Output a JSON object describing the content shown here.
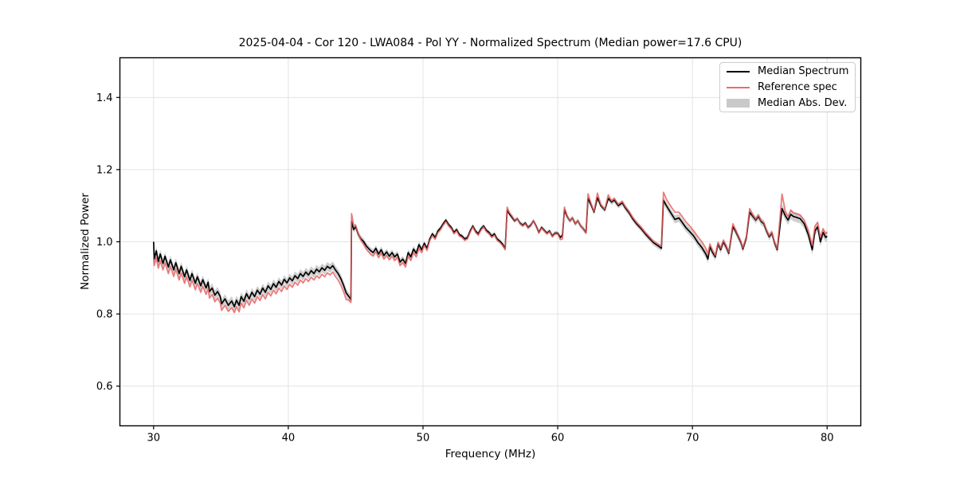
{
  "chart_data": {
    "type": "line",
    "title": "2025-04-04 - Cor 120 - LWA084 - Pol YY - Normalized Spectrum (Median power=17.6 CPU)",
    "xlabel": "Frequency (MHz)",
    "ylabel": "Normalized Power",
    "xlim": [
      27.5,
      82.5
    ],
    "ylim": [
      0.49,
      1.51
    ],
    "xticks": [
      30,
      40,
      50,
      60,
      70,
      80
    ],
    "xtick_labels": [
      "30",
      "40",
      "50",
      "60",
      "70",
      "80"
    ],
    "yticks": [
      0.6,
      0.8,
      1.0,
      1.2,
      1.4
    ],
    "ytick_labels": [
      "0.6",
      "0.8",
      "1.0",
      "1.2",
      "1.4"
    ],
    "grid": true,
    "legend": {
      "position": "upper right",
      "entries": [
        {
          "label": "Median Spectrum",
          "type": "line",
          "color": "#000000"
        },
        {
          "label": "Reference spec",
          "type": "line",
          "color": "#ee6a6a"
        },
        {
          "label": "Median Abs. Dev.",
          "type": "patch",
          "color": "#c9c9c9"
        }
      ]
    },
    "colors": {
      "median": "#000000",
      "reference": "#e65a5a",
      "band": "#c9c9c9",
      "grid": "#e3e3e3",
      "spine": "#000000",
      "text": "#000000"
    },
    "points_format": [
      "frequency_mhz",
      "median_power",
      "reference_power",
      "mad_halfwidth"
    ],
    "points": [
      [
        30.0,
        1.0,
        0.955,
        0.012
      ],
      [
        30.05,
        0.952,
        0.934,
        0.012
      ],
      [
        30.2,
        0.975,
        0.957,
        0.012
      ],
      [
        30.35,
        0.945,
        0.927,
        0.012
      ],
      [
        30.5,
        0.966,
        0.948,
        0.012
      ],
      [
        30.7,
        0.94,
        0.922,
        0.012
      ],
      [
        30.85,
        0.96,
        0.942,
        0.012
      ],
      [
        31.1,
        0.93,
        0.912,
        0.012
      ],
      [
        31.25,
        0.95,
        0.932,
        0.012
      ],
      [
        31.5,
        0.922,
        0.904,
        0.012
      ],
      [
        31.65,
        0.942,
        0.924,
        0.012
      ],
      [
        31.9,
        0.912,
        0.894,
        0.012
      ],
      [
        32.05,
        0.932,
        0.914,
        0.012
      ],
      [
        32.3,
        0.903,
        0.885,
        0.012
      ],
      [
        32.45,
        0.922,
        0.904,
        0.012
      ],
      [
        32.7,
        0.893,
        0.875,
        0.012
      ],
      [
        32.85,
        0.912,
        0.894,
        0.012
      ],
      [
        33.1,
        0.885,
        0.867,
        0.012
      ],
      [
        33.25,
        0.903,
        0.885,
        0.012
      ],
      [
        33.5,
        0.878,
        0.86,
        0.012
      ],
      [
        33.65,
        0.895,
        0.877,
        0.012
      ],
      [
        33.9,
        0.872,
        0.854,
        0.012
      ],
      [
        34.05,
        0.888,
        0.87,
        0.012
      ],
      [
        34.15,
        0.862,
        0.844,
        0.013
      ],
      [
        34.35,
        0.872,
        0.854,
        0.013
      ],
      [
        34.55,
        0.852,
        0.834,
        0.013
      ],
      [
        34.75,
        0.862,
        0.844,
        0.013
      ],
      [
        34.95,
        0.848,
        0.83,
        0.013
      ],
      [
        35.05,
        0.828,
        0.81,
        0.013
      ],
      [
        35.3,
        0.842,
        0.824,
        0.013
      ],
      [
        35.55,
        0.824,
        0.807,
        0.013
      ],
      [
        35.8,
        0.836,
        0.818,
        0.013
      ],
      [
        36.0,
        0.82,
        0.804,
        0.013
      ],
      [
        36.15,
        0.838,
        0.82,
        0.013
      ],
      [
        36.35,
        0.824,
        0.806,
        0.013
      ],
      [
        36.5,
        0.848,
        0.83,
        0.013
      ],
      [
        36.7,
        0.835,
        0.817,
        0.013
      ],
      [
        36.9,
        0.856,
        0.838,
        0.013
      ],
      [
        37.1,
        0.842,
        0.824,
        0.012
      ],
      [
        37.3,
        0.86,
        0.842,
        0.012
      ],
      [
        37.5,
        0.848,
        0.83,
        0.012
      ],
      [
        37.7,
        0.866,
        0.848,
        0.012
      ],
      [
        37.9,
        0.855,
        0.837,
        0.012
      ],
      [
        38.1,
        0.872,
        0.854,
        0.012
      ],
      [
        38.3,
        0.86,
        0.842,
        0.012
      ],
      [
        38.5,
        0.878,
        0.86,
        0.012
      ],
      [
        38.7,
        0.868,
        0.85,
        0.012
      ],
      [
        38.9,
        0.884,
        0.866,
        0.012
      ],
      [
        39.1,
        0.874,
        0.856,
        0.012
      ],
      [
        39.3,
        0.89,
        0.872,
        0.012
      ],
      [
        39.5,
        0.88,
        0.862,
        0.012
      ],
      [
        39.7,
        0.896,
        0.878,
        0.012
      ],
      [
        39.9,
        0.886,
        0.868,
        0.012
      ],
      [
        40.1,
        0.9,
        0.882,
        0.012
      ],
      [
        40.3,
        0.892,
        0.874,
        0.012
      ],
      [
        40.5,
        0.906,
        0.888,
        0.012
      ],
      [
        40.7,
        0.898,
        0.88,
        0.012
      ],
      [
        40.9,
        0.912,
        0.894,
        0.012
      ],
      [
        41.1,
        0.904,
        0.886,
        0.012
      ],
      [
        41.3,
        0.916,
        0.898,
        0.012
      ],
      [
        41.5,
        0.908,
        0.89,
        0.012
      ],
      [
        41.7,
        0.92,
        0.902,
        0.012
      ],
      [
        41.9,
        0.912,
        0.894,
        0.012
      ],
      [
        42.1,
        0.924,
        0.906,
        0.012
      ],
      [
        42.3,
        0.917,
        0.899,
        0.012
      ],
      [
        42.5,
        0.928,
        0.91,
        0.012
      ],
      [
        42.7,
        0.921,
        0.903,
        0.012
      ],
      [
        42.9,
        0.932,
        0.914,
        0.012
      ],
      [
        43.1,
        0.926,
        0.908,
        0.012
      ],
      [
        43.3,
        0.934,
        0.916,
        0.012
      ],
      [
        43.5,
        0.922,
        0.904,
        0.012
      ],
      [
        43.7,
        0.912,
        0.894,
        0.012
      ],
      [
        43.9,
        0.898,
        0.88,
        0.012
      ],
      [
        44.1,
        0.88,
        0.862,
        0.012
      ],
      [
        44.3,
        0.858,
        0.84,
        0.012
      ],
      [
        44.5,
        0.848,
        0.838,
        0.011
      ],
      [
        44.65,
        0.84,
        0.832,
        0.01
      ],
      [
        44.7,
        1.056,
        1.078,
        0.009
      ],
      [
        44.85,
        1.034,
        1.046,
        0.009
      ],
      [
        45.0,
        1.042,
        1.046,
        0.009
      ],
      [
        45.2,
        1.02,
        1.022,
        0.009
      ],
      [
        45.4,
        1.008,
        1.004,
        0.009
      ],
      [
        45.6,
        1.0,
        0.992,
        0.009
      ],
      [
        45.8,
        0.988,
        0.979,
        0.009
      ],
      [
        46.1,
        0.976,
        0.966,
        0.009
      ],
      [
        46.3,
        0.97,
        0.96,
        0.009
      ],
      [
        46.5,
        0.982,
        0.972,
        0.009
      ],
      [
        46.7,
        0.966,
        0.956,
        0.009
      ],
      [
        46.9,
        0.978,
        0.968,
        0.009
      ],
      [
        47.1,
        0.962,
        0.952,
        0.009
      ],
      [
        47.3,
        0.972,
        0.962,
        0.009
      ],
      [
        47.5,
        0.96,
        0.95,
        0.009
      ],
      [
        47.7,
        0.97,
        0.96,
        0.009
      ],
      [
        47.9,
        0.958,
        0.948,
        0.009
      ],
      [
        48.1,
        0.966,
        0.956,
        0.009
      ],
      [
        48.3,
        0.944,
        0.934,
        0.009
      ],
      [
        48.5,
        0.952,
        0.942,
        0.009
      ],
      [
        48.7,
        0.94,
        0.93,
        0.009
      ],
      [
        48.9,
        0.97,
        0.96,
        0.009
      ],
      [
        49.1,
        0.958,
        0.948,
        0.009
      ],
      [
        49.3,
        0.98,
        0.97,
        0.009
      ],
      [
        49.5,
        0.968,
        0.958,
        0.009
      ],
      [
        49.7,
        0.992,
        0.982,
        0.009
      ],
      [
        49.9,
        0.978,
        0.97,
        0.009
      ],
      [
        50.1,
        0.996,
        0.99,
        0.006
      ],
      [
        50.3,
        0.982,
        0.976,
        0.006
      ],
      [
        50.5,
        1.008,
        1.003,
        0.006
      ],
      [
        50.7,
        1.022,
        1.017,
        0.006
      ],
      [
        50.9,
        1.012,
        1.007,
        0.006
      ],
      [
        51.1,
        1.03,
        1.025,
        0.006
      ],
      [
        51.3,
        1.038,
        1.033,
        0.006
      ],
      [
        51.5,
        1.05,
        1.046,
        0.006
      ],
      [
        51.7,
        1.06,
        1.056,
        0.006
      ],
      [
        51.9,
        1.048,
        1.044,
        0.006
      ],
      [
        52.1,
        1.04,
        1.036,
        0.006
      ],
      [
        52.3,
        1.026,
        1.022,
        0.006
      ],
      [
        52.5,
        1.034,
        1.03,
        0.006
      ],
      [
        52.7,
        1.02,
        1.016,
        0.006
      ],
      [
        52.9,
        1.016,
        1.012,
        0.006
      ],
      [
        53.1,
        1.008,
        1.004,
        0.006
      ],
      [
        53.3,
        1.012,
        1.008,
        0.006
      ],
      [
        53.5,
        1.03,
        1.026,
        0.006
      ],
      [
        53.7,
        1.044,
        1.041,
        0.006
      ],
      [
        53.9,
        1.03,
        1.026,
        0.006
      ],
      [
        54.1,
        1.022,
        1.018,
        0.006
      ],
      [
        54.3,
        1.036,
        1.032,
        0.006
      ],
      [
        54.5,
        1.044,
        1.041,
        0.006
      ],
      [
        54.7,
        1.032,
        1.028,
        0.006
      ],
      [
        54.9,
        1.026,
        1.022,
        0.006
      ],
      [
        55.1,
        1.016,
        1.012,
        0.006
      ],
      [
        55.3,
        1.022,
        1.018,
        0.006
      ],
      [
        55.5,
        1.008,
        1.004,
        0.006
      ],
      [
        55.7,
        1.002,
        0.998,
        0.006
      ],
      [
        55.9,
        0.994,
        0.99,
        0.006
      ],
      [
        56.1,
        0.982,
        0.978,
        0.006
      ],
      [
        56.25,
        1.088,
        1.096,
        0.006
      ],
      [
        56.4,
        1.078,
        1.082,
        0.006
      ],
      [
        56.6,
        1.068,
        1.072,
        0.006
      ],
      [
        56.8,
        1.058,
        1.06,
        0.006
      ],
      [
        57.0,
        1.064,
        1.064,
        0.006
      ],
      [
        57.2,
        1.052,
        1.05,
        0.006
      ],
      [
        57.4,
        1.046,
        1.044,
        0.006
      ],
      [
        57.6,
        1.052,
        1.05,
        0.006
      ],
      [
        57.8,
        1.04,
        1.038,
        0.006
      ],
      [
        58.0,
        1.046,
        1.044,
        0.006
      ],
      [
        58.2,
        1.058,
        1.058,
        0.006
      ],
      [
        58.4,
        1.044,
        1.042,
        0.006
      ],
      [
        58.6,
        1.026,
        1.024,
        0.006
      ],
      [
        58.8,
        1.04,
        1.038,
        0.006
      ],
      [
        59.0,
        1.032,
        1.03,
        0.006
      ],
      [
        59.2,
        1.024,
        1.022,
        0.006
      ],
      [
        59.4,
        1.03,
        1.028,
        0.006
      ],
      [
        59.6,
        1.016,
        1.014,
        0.006
      ],
      [
        59.8,
        1.024,
        1.022,
        0.006
      ],
      [
        60.0,
        1.024,
        1.022,
        0.006
      ],
      [
        60.2,
        1.012,
        1.006,
        0.006
      ],
      [
        60.35,
        1.018,
        1.008,
        0.006
      ],
      [
        60.5,
        1.088,
        1.096,
        0.007
      ],
      [
        60.7,
        1.07,
        1.072,
        0.007
      ],
      [
        60.9,
        1.058,
        1.058,
        0.007
      ],
      [
        61.1,
        1.066,
        1.066,
        0.007
      ],
      [
        61.3,
        1.05,
        1.05,
        0.007
      ],
      [
        61.5,
        1.058,
        1.058,
        0.007
      ],
      [
        61.7,
        1.044,
        1.044,
        0.007
      ],
      [
        61.9,
        1.036,
        1.035,
        0.007
      ],
      [
        62.1,
        1.026,
        1.024,
        0.007
      ],
      [
        62.25,
        1.12,
        1.133,
        0.007
      ],
      [
        62.5,
        1.1,
        1.104,
        0.007
      ],
      [
        62.7,
        1.082,
        1.084,
        0.007
      ],
      [
        62.95,
        1.122,
        1.135,
        0.007
      ],
      [
        63.2,
        1.1,
        1.103,
        0.007
      ],
      [
        63.5,
        1.088,
        1.09,
        0.007
      ],
      [
        63.75,
        1.12,
        1.13,
        0.007
      ],
      [
        64.0,
        1.11,
        1.113,
        0.008
      ],
      [
        64.2,
        1.116,
        1.12,
        0.008
      ],
      [
        64.5,
        1.1,
        1.104,
        0.008
      ],
      [
        64.8,
        1.108,
        1.112,
        0.008
      ],
      [
        65.0,
        1.095,
        1.099,
        0.008
      ],
      [
        65.3,
        1.08,
        1.084,
        0.008
      ],
      [
        65.6,
        1.062,
        1.066,
        0.008
      ],
      [
        65.9,
        1.048,
        1.052,
        0.008
      ],
      [
        66.2,
        1.036,
        1.04,
        0.008
      ],
      [
        66.5,
        1.022,
        1.026,
        0.008
      ],
      [
        66.8,
        1.01,
        1.014,
        0.008
      ],
      [
        67.1,
        0.998,
        1.002,
        0.008
      ],
      [
        67.4,
        0.99,
        0.994,
        0.008
      ],
      [
        67.7,
        0.982,
        0.988,
        0.008
      ],
      [
        67.85,
        1.115,
        1.137,
        0.01
      ],
      [
        68.1,
        1.098,
        1.116,
        0.011
      ],
      [
        68.4,
        1.08,
        1.098,
        0.011
      ],
      [
        68.7,
        1.062,
        1.082,
        0.011
      ],
      [
        69.0,
        1.066,
        1.082,
        0.011
      ],
      [
        69.2,
        1.056,
        1.072,
        0.011
      ],
      [
        69.5,
        1.04,
        1.056,
        0.011
      ],
      [
        69.8,
        1.028,
        1.044,
        0.011
      ],
      [
        70.1,
        1.016,
        1.03,
        0.011
      ],
      [
        70.4,
        0.998,
        1.014,
        0.011
      ],
      [
        70.7,
        0.984,
        1.0,
        0.011
      ],
      [
        71.0,
        0.966,
        0.982,
        0.011
      ],
      [
        71.15,
        0.952,
        0.966,
        0.011
      ],
      [
        71.3,
        0.986,
        0.994,
        0.01
      ],
      [
        71.5,
        0.97,
        0.976,
        0.01
      ],
      [
        71.7,
        0.958,
        0.962,
        0.01
      ],
      [
        71.9,
        0.994,
        0.998,
        0.01
      ],
      [
        72.1,
        0.978,
        0.982,
        0.01
      ],
      [
        72.3,
        1.0,
        1.004,
        0.01
      ],
      [
        72.5,
        0.986,
        0.99,
        0.01
      ],
      [
        72.7,
        0.968,
        0.971,
        0.01
      ],
      [
        73.0,
        1.042,
        1.05,
        0.01
      ],
      [
        73.2,
        1.03,
        1.034,
        0.01
      ],
      [
        73.4,
        1.014,
        1.017,
        0.01
      ],
      [
        73.6,
        0.998,
        1.001,
        0.01
      ],
      [
        73.75,
        0.98,
        0.983,
        0.01
      ],
      [
        74.0,
        1.01,
        1.014,
        0.01
      ],
      [
        74.25,
        1.082,
        1.092,
        0.01
      ],
      [
        74.5,
        1.07,
        1.074,
        0.01
      ],
      [
        74.7,
        1.06,
        1.063,
        0.01
      ],
      [
        74.9,
        1.07,
        1.074,
        0.01
      ],
      [
        75.1,
        1.056,
        1.059,
        0.01
      ],
      [
        75.3,
        1.05,
        1.053,
        0.01
      ],
      [
        75.5,
        1.03,
        1.033,
        0.01
      ],
      [
        75.7,
        1.014,
        1.017,
        0.01
      ],
      [
        75.9,
        1.024,
        1.027,
        0.01
      ],
      [
        76.1,
        0.996,
        0.999,
        0.01
      ],
      [
        76.3,
        0.978,
        0.981,
        0.01
      ],
      [
        76.65,
        1.092,
        1.132,
        0.013
      ],
      [
        76.9,
        1.072,
        1.084,
        0.013
      ],
      [
        77.1,
        1.06,
        1.07,
        0.013
      ],
      [
        77.3,
        1.076,
        1.088,
        0.013
      ],
      [
        77.5,
        1.07,
        1.08,
        0.013
      ],
      [
        77.7,
        1.068,
        1.078,
        0.013
      ],
      [
        78.0,
        1.064,
        1.074,
        0.013
      ],
      [
        78.3,
        1.05,
        1.06,
        0.013
      ],
      [
        78.6,
        1.02,
        1.032,
        0.013
      ],
      [
        78.9,
        0.978,
        0.99,
        0.013
      ],
      [
        79.1,
        1.03,
        1.044,
        0.013
      ],
      [
        79.3,
        1.042,
        1.054,
        0.013
      ],
      [
        79.5,
        1.0,
        1.012,
        0.013
      ],
      [
        79.7,
        1.026,
        1.036,
        0.013
      ],
      [
        79.9,
        1.012,
        1.022,
        0.013
      ],
      [
        80.0,
        1.016,
        1.028,
        0.013
      ]
    ]
  }
}
